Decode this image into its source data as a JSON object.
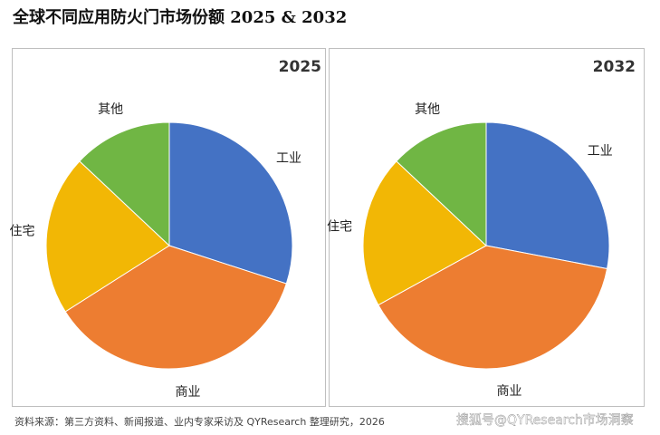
{
  "title": "全球不同应用防火门市场份额 2025 & 2032",
  "source": "资料来源：第三方资料、新闻报道、业内专家采访及 QYResearch 整理研究，2026",
  "watermark": "搜狐号@QYResearch市场洞察",
  "chart_data": [
    {
      "type": "pie",
      "title": "2025",
      "categories": [
        "工业",
        "商业",
        "住宅",
        "其他"
      ],
      "values": [
        30,
        36,
        21,
        13
      ],
      "colors": [
        "#4472c4",
        "#ed7d31",
        "#f2b705",
        "#70b644"
      ]
    },
    {
      "type": "pie",
      "title": "2032",
      "categories": [
        "工业",
        "商业",
        "住宅",
        "其他"
      ],
      "values": [
        28,
        39,
        20,
        13
      ],
      "colors": [
        "#4472c4",
        "#ed7d31",
        "#f2b705",
        "#70b644"
      ]
    }
  ]
}
